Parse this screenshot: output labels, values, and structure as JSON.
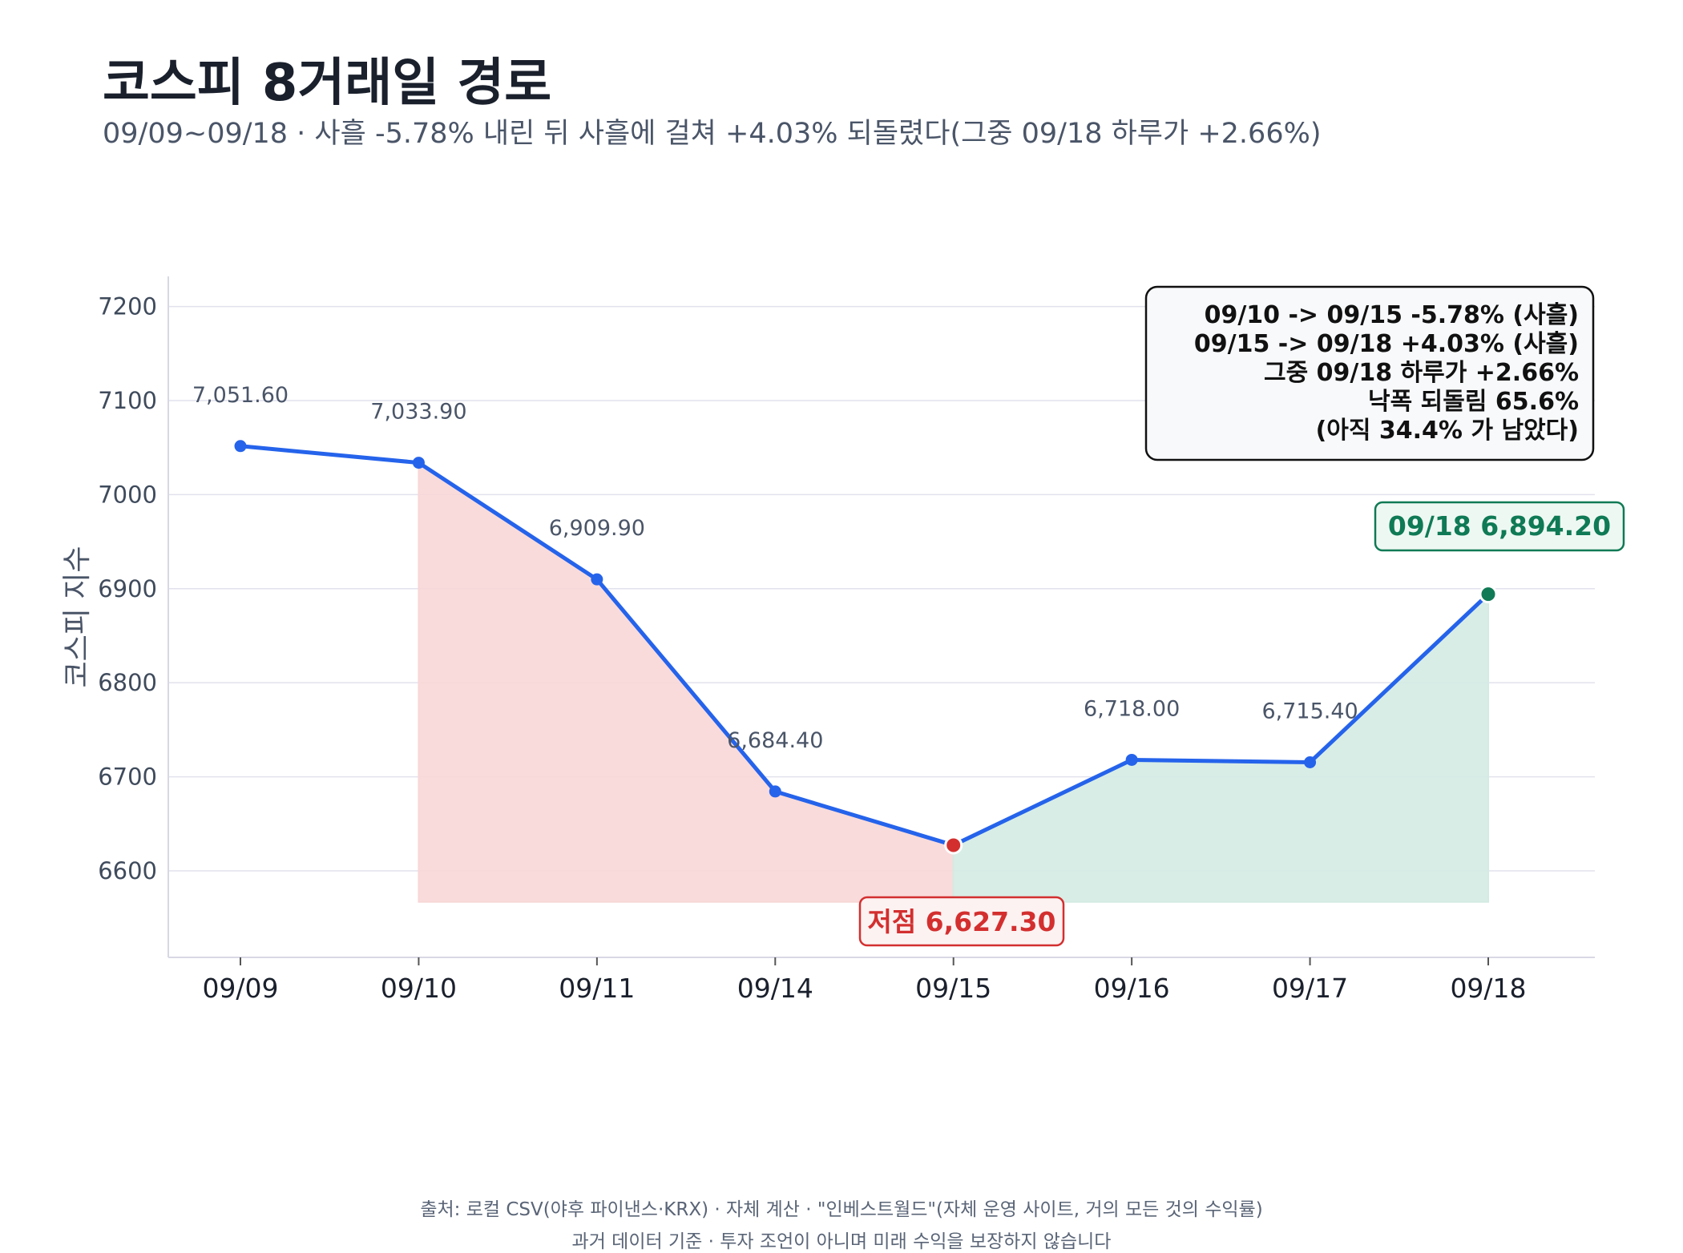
{
  "header": {
    "title": "코스피 8거래일 경로",
    "subtitle": "09/09~09/18 · 사흘 -5.78% 내린 뒤 사흘에 걸쳐 +4.03% 되돌렸다(그중 09/18 하루가 +2.66%)"
  },
  "footer": {
    "line1": "출처: 로컬 CSV(야후 파이낸스·KRX) · 자체 계산 · \"인베스트월드\"(자체 운영 사이트, 거의 모든 것의 수익률)",
    "line2": "과거 데이터 기준 · 투자 조언이 아니며 미래 수익을 보장하지 않습니다"
  },
  "chart_data": {
    "type": "line",
    "ylabel": "코스피 지수",
    "xlabel": "",
    "categories": [
      "09/09",
      "09/10",
      "09/11",
      "09/14",
      "09/15",
      "09/16",
      "09/17",
      "09/18"
    ],
    "values": [
      7051.6,
      7033.9,
      6909.9,
      6684.4,
      6627.3,
      6718.0,
      6715.4,
      6894.2
    ],
    "value_labels": [
      "7,051.60",
      "7,033.90",
      "6,909.90",
      "6,684.40",
      "",
      "6,718.00",
      "6,715.40",
      ""
    ],
    "ylim": [
      6508,
      7232
    ],
    "yticks": [
      "6600",
      "6700",
      "6800",
      "6900",
      "7000",
      "7100",
      "7200"
    ],
    "ytick_values": [
      6600,
      6700,
      6800,
      6900,
      7000,
      7100,
      7200
    ],
    "grid": true,
    "fill_baseline": 6567,
    "decline_range": [
      "09/10",
      "09/15"
    ],
    "rebound_range": [
      "09/15",
      "09/18"
    ],
    "low_label": "저점 6,627.30",
    "end_label": "09/18   6,894.20",
    "summary_lines": [
      "09/10 -> 09/15   -5.78%   (사흘)",
      "09/15 -> 09/18   +4.03%   (사흘)",
      "그중 09/18 하루가   +2.66%",
      "낙폭 되돌림  65.6%",
      "(아직 34.4% 가 남았다)"
    ],
    "summary_position": "top-right",
    "colors": {
      "line": "#2563eb",
      "decline_fill": "#f8d7d7",
      "rebound_fill": "#d4ebe3",
      "low_marker": "#d32f2f",
      "end_marker": "#0f7a55",
      "grid": "#e2e2ee",
      "axis": "#d8d8e4"
    }
  }
}
